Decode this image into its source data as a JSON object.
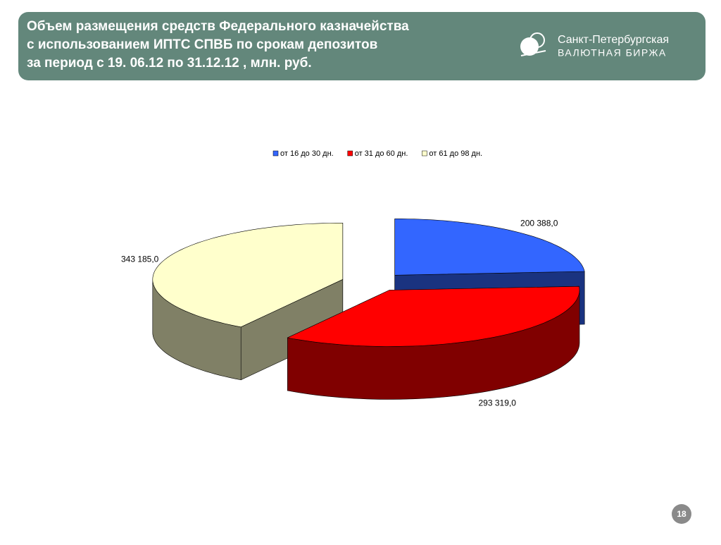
{
  "header": {
    "logo_line1": "Санкт-Петербургская",
    "logo_line2": "ВАЛЮТНАЯ БИРЖА"
  },
  "page_number": "18",
  "chart_data": {
    "type": "pie",
    "title": [
      "Объем размещения средств Федерального казначейства",
      "с использованием ИПТС СПВБ по срокам  депозитов",
      "за период с 19. 06.12 по 31.12.12 , млн. руб."
    ],
    "categories": [
      "от 16 до 30 дн.",
      "от 31 до 60 дн.",
      "от 61 до 98 дн."
    ],
    "values": [
      200388.0,
      293319.0,
      343185.0
    ],
    "value_labels": [
      "200 388,0",
      "293 319,0",
      "343 185,0"
    ],
    "colors": [
      "#3366ff",
      "#ff0000",
      "#ffffcc"
    ],
    "legend": "top"
  }
}
